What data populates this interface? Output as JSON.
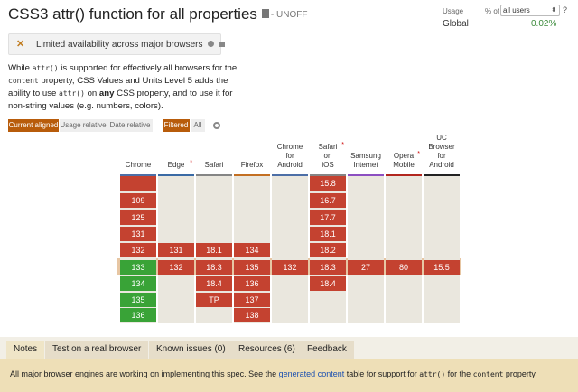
{
  "title": "CSS3 attr() function for all properties",
  "status": "- UNOFF",
  "usage": {
    "label": "Usage",
    "pct_label": "% of",
    "select_value": "all users",
    "help": "?",
    "region": "Global",
    "value": "0.02%"
  },
  "limited": {
    "text": "Limited availability across major browsers"
  },
  "description": {
    "p1": "While ",
    "c1": "attr()",
    "p2": " is supported for effectively all browsers for the ",
    "c2": "content",
    "p3": " property, CSS Values and Units Level 5 adds the ability to use ",
    "c3": "attr()",
    "p4": " on ",
    "b1": "any",
    "p5": " CSS property, and to use it for non-string values (e.g. numbers, colors)."
  },
  "buttons": {
    "current_aligned": "Current aligned",
    "usage_relative": "Usage relative",
    "date_relative": "Date relative",
    "filtered": "Filtered",
    "all": "All"
  },
  "browsers": [
    {
      "name": "Chrome",
      "color": "#4d6fa7",
      "cells": [
        {
          "v": "",
          "s": "r"
        },
        {
          "v": "109",
          "s": "r"
        },
        {
          "v": "125",
          "s": "r"
        },
        {
          "v": "131",
          "s": "r"
        },
        {
          "v": "132",
          "s": "r"
        },
        {
          "v": "133",
          "s": "g"
        },
        {
          "v": "134",
          "s": "g"
        },
        {
          "v": "135",
          "s": "g"
        },
        {
          "v": "136",
          "s": "g"
        }
      ]
    },
    {
      "name": "Edge",
      "note": "*",
      "color": "#3a6aa5",
      "cells": [
        null,
        null,
        null,
        null,
        {
          "v": "131",
          "s": "r"
        },
        {
          "v": "132",
          "s": "r"
        },
        null,
        null,
        null
      ]
    },
    {
      "name": "Safari",
      "color": "#858585",
      "cells": [
        null,
        null,
        null,
        null,
        {
          "v": "18.1",
          "s": "r"
        },
        {
          "v": "18.3",
          "s": "r"
        },
        {
          "v": "18.4",
          "s": "r"
        },
        {
          "v": "TP",
          "s": "r"
        },
        null
      ]
    },
    {
      "name": "Firefox",
      "color": "#c36f22",
      "cells": [
        null,
        null,
        null,
        null,
        {
          "v": "134",
          "s": "r"
        },
        {
          "v": "135",
          "s": "r"
        },
        {
          "v": "136",
          "s": "r"
        },
        {
          "v": "137",
          "s": "r"
        },
        {
          "v": "138",
          "s": "r"
        }
      ]
    },
    {
      "name": "Chrome for Android",
      "color": "#4d6fa7",
      "cells": [
        null,
        null,
        null,
        null,
        null,
        {
          "v": "132",
          "s": "r"
        },
        null,
        null,
        null
      ]
    },
    {
      "name": "Safari on iOS",
      "note": "*",
      "color": "#858585",
      "cells": [
        {
          "v": "15.8",
          "s": "r"
        },
        {
          "v": "16.7",
          "s": "r"
        },
        {
          "v": "17.7",
          "s": "r"
        },
        {
          "v": "18.1",
          "s": "r"
        },
        {
          "v": "18.2",
          "s": "r"
        },
        {
          "v": "18.3",
          "s": "r"
        },
        {
          "v": "18.4",
          "s": "r"
        },
        null,
        null
      ]
    },
    {
      "name": "Samsung Internet",
      "color": "#8c4fc1",
      "cells": [
        null,
        null,
        null,
        null,
        null,
        {
          "v": "27",
          "s": "r"
        },
        null,
        null,
        null
      ]
    },
    {
      "name": "Opera Mobile",
      "note": "*",
      "color": "#b2261e",
      "cells": [
        null,
        null,
        null,
        null,
        null,
        {
          "v": "80",
          "s": "r"
        },
        null,
        null,
        null
      ]
    },
    {
      "name": "UC Browser for Android",
      "color": "#222222",
      "cells": [
        null,
        null,
        null,
        null,
        null,
        {
          "v": "15.5",
          "s": "r"
        },
        null,
        null,
        null
      ]
    }
  ],
  "tabs": [
    "Notes",
    "Test on a real browser",
    "Known issues (0)",
    "Resources (6)",
    "Feedback"
  ],
  "note": {
    "t1": "All major browser engines are working on implementing this spec. See the ",
    "link": "generated content",
    "t2": " table for support for ",
    "c1": "attr()",
    "t3": " for the ",
    "c2": "content",
    "t4": " property."
  }
}
